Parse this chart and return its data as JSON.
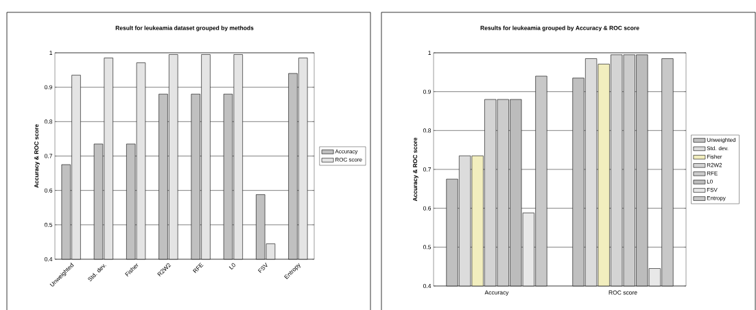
{
  "chart_data": [
    {
      "type": "bar",
      "title": "Result for leukeamia dataset grouped by methods",
      "ylabel": "Accuracy & ROC score",
      "categories": [
        "Unweighted",
        "Std. dev.",
        "Fisher",
        "R2W2",
        "RFE",
        "L0",
        "FSV",
        "Entropy"
      ],
      "series": [
        {
          "name": "Accuracy",
          "color": "#c0c0c0",
          "values": [
            0.675,
            0.735,
            0.735,
            0.88,
            0.88,
            0.88,
            0.588,
            0.94
          ]
        },
        {
          "name": "ROC score",
          "color": "#e4e4e4",
          "values": [
            0.935,
            0.985,
            0.971,
            0.995,
            0.995,
            0.995,
            0.445,
            0.985
          ]
        }
      ],
      "ylim": [
        0.4,
        1
      ],
      "yticks": [
        0.4,
        0.5,
        0.6,
        0.7,
        0.8,
        0.9,
        1
      ],
      "grid": "y",
      "legend": "right"
    },
    {
      "type": "bar",
      "title": "Results for leukeamia grouped by Accuracy & ROC score",
      "ylabel": "Accuracy & ROC score",
      "categories": [
        "Accuracy",
        "ROC score"
      ],
      "series": [
        {
          "name": "Unweighted",
          "color": "#c0c0c0",
          "values": [
            0.675,
            0.935
          ]
        },
        {
          "name": "Std. dev.",
          "color": "#dcdcdc",
          "values": [
            0.735,
            0.985
          ]
        },
        {
          "name": "Fisher",
          "color": "#f2eebe",
          "values": [
            0.735,
            0.971
          ]
        },
        {
          "name": "R2W2",
          "color": "#d4d4d4",
          "values": [
            0.88,
            0.995
          ]
        },
        {
          "name": "RFE",
          "color": "#cccccc",
          "values": [
            0.88,
            0.995
          ]
        },
        {
          "name": "L0",
          "color": "#bcbcbc",
          "values": [
            0.88,
            0.995
          ]
        },
        {
          "name": "FSV",
          "color": "#e8e8e8",
          "values": [
            0.588,
            0.445
          ]
        },
        {
          "name": "Entropy",
          "color": "#c8c8c8",
          "values": [
            0.94,
            0.985
          ]
        }
      ],
      "ylim": [
        0.4,
        1
      ],
      "yticks": [
        0.4,
        0.5,
        0.6,
        0.7,
        0.8,
        0.9,
        1
      ],
      "grid": "y",
      "legend": "right"
    }
  ]
}
